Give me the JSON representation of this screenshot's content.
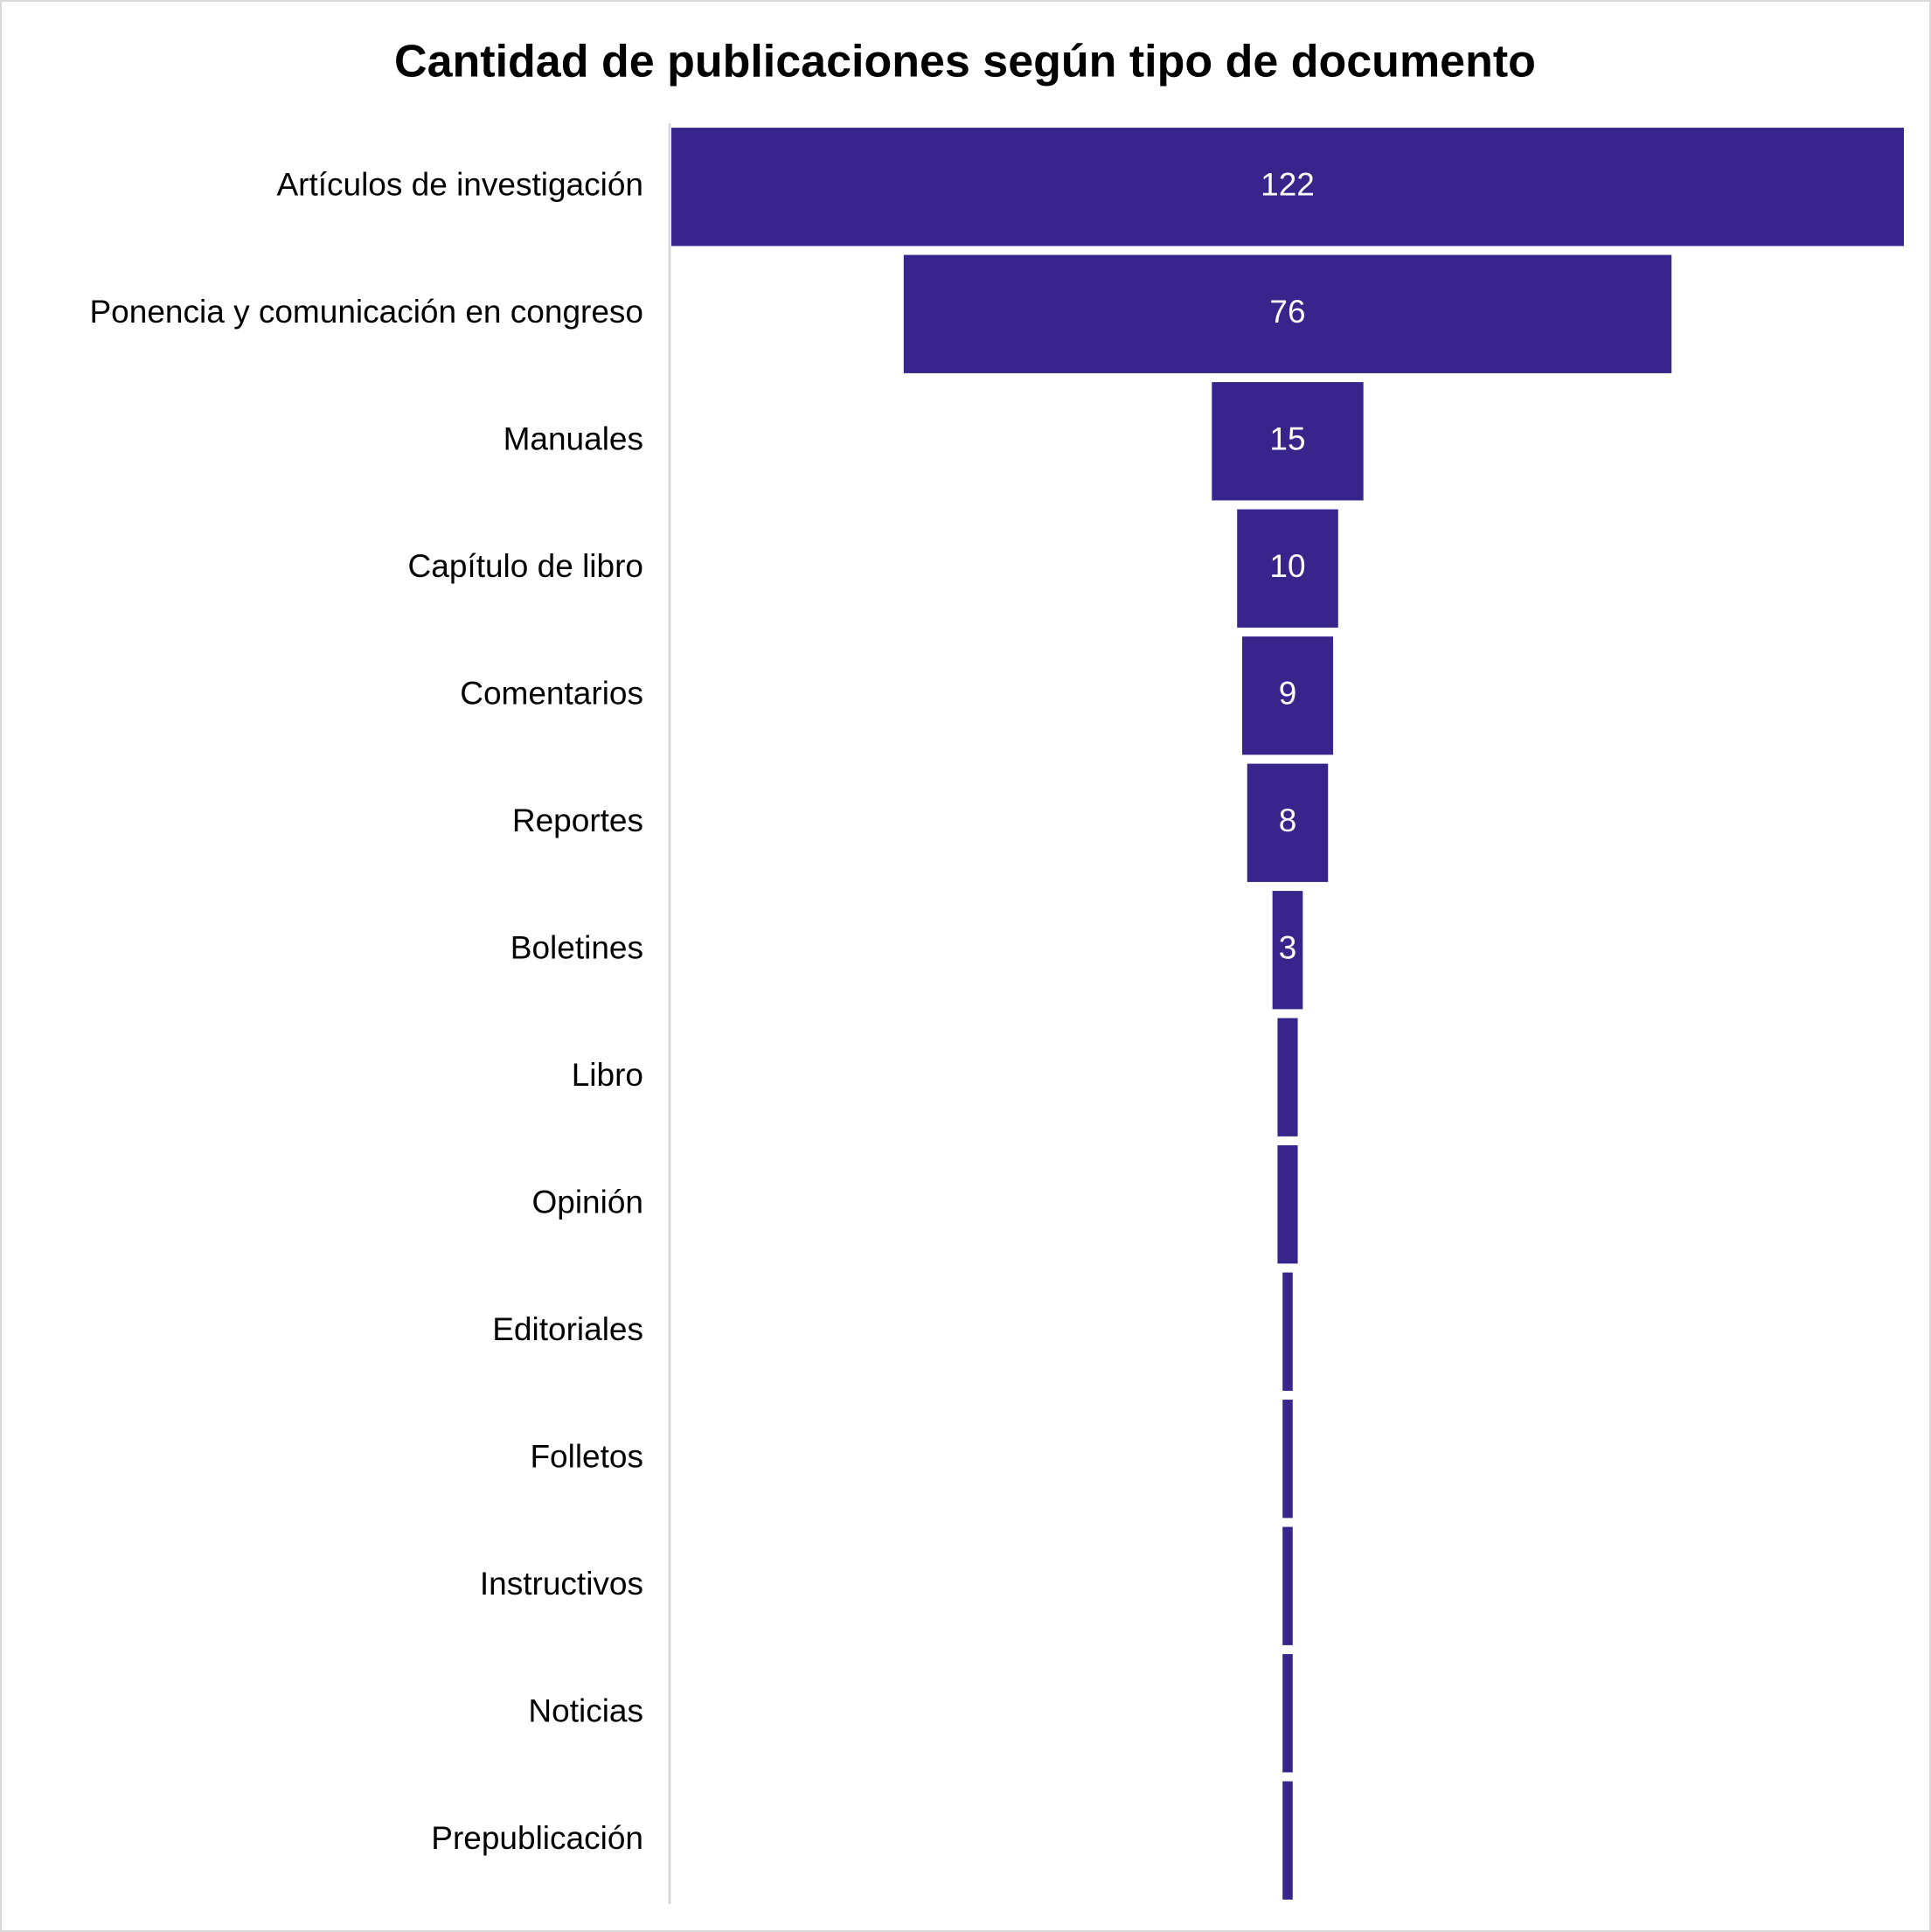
{
  "chart_data": {
    "type": "funnel",
    "title": "Cantidad de publicaciones según tipo de documento",
    "categories": [
      "Artículos de investigación",
      "Ponencia y comunicación en congreso",
      "Manuales",
      "Capítulo de libro",
      "Comentarios",
      "Reportes",
      "Boletines",
      "Libro",
      "Opinión",
      "Editoriales",
      "Folletos",
      "Instructivos",
      "Noticias",
      "Prepublicación"
    ],
    "values": [
      122,
      76,
      15,
      10,
      9,
      8,
      3,
      2,
      2,
      1,
      1,
      1,
      1,
      1
    ],
    "color": "#37258c"
  }
}
